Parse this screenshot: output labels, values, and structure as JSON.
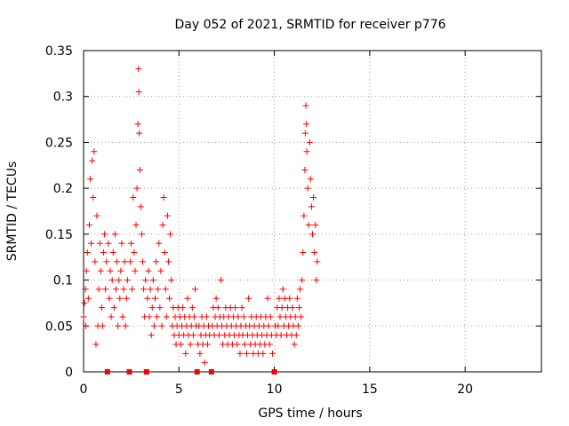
{
  "chart_data": {
    "type": "scatter",
    "title": "Day 052 of 2021, SRMTID for receiver p776",
    "xlabel": "GPS time / hours",
    "ylabel": "SRMTID / TECUs",
    "xlim": [
      0,
      24
    ],
    "ylim": [
      0,
      0.35
    ],
    "x_ticks": [
      0,
      5,
      10,
      15,
      20
    ],
    "x_tick_labels": [
      "0",
      "5",
      "10",
      "15",
      "20"
    ],
    "y_ticks": [
      0,
      0.05,
      0.1,
      0.15,
      0.2,
      0.25,
      0.3,
      0.35
    ],
    "y_tick_labels": [
      "0",
      "0.05",
      "0.1",
      "0.15",
      "0.2",
      "0.25",
      "0.3",
      "0.35"
    ],
    "grid": true,
    "marker": "+",
    "color": "#ff0000",
    "data_gaps_x": [
      1.25,
      2.4,
      3.3,
      5.95,
      6.7,
      10.0
    ],
    "series": [
      {
        "name": "SRMTID",
        "points": [
          [
            0.0,
            0.06
          ],
          [
            0.05,
            0.075
          ],
          [
            0.1,
            0.09
          ],
          [
            0.12,
            0.05
          ],
          [
            0.15,
            0.11
          ],
          [
            0.2,
            0.13
          ],
          [
            0.25,
            0.08
          ],
          [
            0.3,
            0.16
          ],
          [
            0.35,
            0.21
          ],
          [
            0.4,
            0.14
          ],
          [
            0.45,
            0.23
          ],
          [
            0.5,
            0.19
          ],
          [
            0.55,
            0.24
          ],
          [
            0.6,
            0.12
          ],
          [
            0.65,
            0.03
          ],
          [
            0.7,
            0.17
          ],
          [
            0.75,
            0.05
          ],
          [
            0.8,
            0.09
          ],
          [
            0.85,
            0.14
          ],
          [
            0.9,
            0.11
          ],
          [
            0.95,
            0.07
          ],
          [
            1.0,
            0.05
          ],
          [
            1.05,
            0.13
          ],
          [
            1.1,
            0.15
          ],
          [
            1.15,
            0.09
          ],
          [
            1.2,
            0.12
          ],
          [
            1.3,
            0.14
          ],
          [
            1.35,
            0.08
          ],
          [
            1.4,
            0.11
          ],
          [
            1.45,
            0.06
          ],
          [
            1.5,
            0.1
          ],
          [
            1.55,
            0.13
          ],
          [
            1.6,
            0.07
          ],
          [
            1.65,
            0.15
          ],
          [
            1.7,
            0.09
          ],
          [
            1.75,
            0.12
          ],
          [
            1.8,
            0.05
          ],
          [
            1.85,
            0.1
          ],
          [
            1.9,
            0.08
          ],
          [
            1.95,
            0.11
          ],
          [
            2.0,
            0.14
          ],
          [
            2.05,
            0.06
          ],
          [
            2.1,
            0.09
          ],
          [
            2.15,
            0.12
          ],
          [
            2.2,
            0.05
          ],
          [
            2.25,
            0.08
          ],
          [
            2.3,
            0.1
          ],
          [
            2.45,
            0.12
          ],
          [
            2.5,
            0.14
          ],
          [
            2.55,
            0.09
          ],
          [
            2.6,
            0.19
          ],
          [
            2.65,
            0.13
          ],
          [
            2.7,
            0.11
          ],
          [
            2.75,
            0.16
          ],
          [
            2.8,
            0.2
          ],
          [
            2.85,
            0.27
          ],
          [
            2.88,
            0.33
          ],
          [
            2.9,
            0.305
          ],
          [
            2.92,
            0.26
          ],
          [
            2.95,
            0.22
          ],
          [
            3.0,
            0.18
          ],
          [
            3.05,
            0.15
          ],
          [
            3.1,
            0.12
          ],
          [
            3.15,
            0.09
          ],
          [
            3.2,
            0.06
          ],
          [
            3.25,
            0.1
          ],
          [
            3.35,
            0.08
          ],
          [
            3.4,
            0.11
          ],
          [
            3.45,
            0.06
          ],
          [
            3.5,
            0.09
          ],
          [
            3.55,
            0.04
          ],
          [
            3.6,
            0.07
          ],
          [
            3.65,
            0.1
          ],
          [
            3.7,
            0.05
          ],
          [
            3.75,
            0.08
          ],
          [
            3.8,
            0.12
          ],
          [
            3.85,
            0.06
          ],
          [
            3.9,
            0.09
          ],
          [
            3.95,
            0.14
          ],
          [
            4.0,
            0.07
          ],
          [
            4.05,
            0.11
          ],
          [
            4.1,
            0.05
          ],
          [
            4.15,
            0.16
          ],
          [
            4.2,
            0.19
          ],
          [
            4.25,
            0.13
          ],
          [
            4.3,
            0.09
          ],
          [
            4.35,
            0.06
          ],
          [
            4.4,
            0.17
          ],
          [
            4.45,
            0.12
          ],
          [
            4.5,
            0.08
          ],
          [
            4.55,
            0.15
          ],
          [
            4.6,
            0.1
          ],
          [
            4.65,
            0.05
          ],
          [
            4.7,
            0.07
          ],
          [
            4.75,
            0.04
          ],
          [
            4.8,
            0.06
          ],
          [
            4.85,
            0.03
          ],
          [
            4.9,
            0.05
          ],
          [
            4.95,
            0.07
          ],
          [
            5.0,
            0.04
          ],
          [
            5.05,
            0.06
          ],
          [
            5.1,
            0.03
          ],
          [
            5.15,
            0.05
          ],
          [
            5.2,
            0.07
          ],
          [
            5.25,
            0.04
          ],
          [
            5.3,
            0.06
          ],
          [
            5.35,
            0.02
          ],
          [
            5.4,
            0.05
          ],
          [
            5.45,
            0.08
          ],
          [
            5.5,
            0.04
          ],
          [
            5.55,
            0.06
          ],
          [
            5.6,
            0.03
          ],
          [
            5.65,
            0.05
          ],
          [
            5.7,
            0.07
          ],
          [
            5.75,
            0.04
          ],
          [
            5.8,
            0.06
          ],
          [
            5.85,
            0.09
          ],
          [
            5.9,
            0.05
          ],
          [
            6.0,
            0.03
          ],
          [
            6.05,
            0.05
          ],
          [
            6.1,
            0.02
          ],
          [
            6.15,
            0.04
          ],
          [
            6.2,
            0.06
          ],
          [
            6.25,
            0.03
          ],
          [
            6.3,
            0.05
          ],
          [
            6.35,
            0.01
          ],
          [
            6.4,
            0.04
          ],
          [
            6.45,
            0.06
          ],
          [
            6.5,
            0.03
          ],
          [
            6.55,
            0.05
          ],
          [
            6.6,
            0.04
          ],
          [
            6.75,
            0.05
          ],
          [
            6.8,
            0.07
          ],
          [
            6.85,
            0.04
          ],
          [
            6.9,
            0.06
          ],
          [
            6.95,
            0.08
          ],
          [
            7.0,
            0.05
          ],
          [
            7.05,
            0.07
          ],
          [
            7.1,
            0.04
          ],
          [
            7.15,
            0.06
          ],
          [
            7.2,
            0.1
          ],
          [
            7.25,
            0.05
          ],
          [
            7.3,
            0.03
          ],
          [
            7.35,
            0.06
          ],
          [
            7.4,
            0.04
          ],
          [
            7.45,
            0.07
          ],
          [
            7.5,
            0.05
          ],
          [
            7.55,
            0.03
          ],
          [
            7.6,
            0.06
          ],
          [
            7.65,
            0.04
          ],
          [
            7.7,
            0.07
          ],
          [
            7.75,
            0.05
          ],
          [
            7.8,
            0.03
          ],
          [
            7.85,
            0.06
          ],
          [
            7.9,
            0.04
          ],
          [
            7.95,
            0.07
          ],
          [
            8.0,
            0.05
          ],
          [
            8.05,
            0.03
          ],
          [
            8.1,
            0.06
          ],
          [
            8.15,
            0.04
          ],
          [
            8.2,
            0.02
          ],
          [
            8.25,
            0.05
          ],
          [
            8.3,
            0.07
          ],
          [
            8.35,
            0.04
          ],
          [
            8.4,
            0.06
          ],
          [
            8.45,
            0.03
          ],
          [
            8.5,
            0.05
          ],
          [
            8.55,
            0.02
          ],
          [
            8.6,
            0.04
          ],
          [
            8.65,
            0.08
          ],
          [
            8.7,
            0.05
          ],
          [
            8.75,
            0.03
          ],
          [
            8.8,
            0.06
          ],
          [
            8.85,
            0.04
          ],
          [
            8.9,
            0.02
          ],
          [
            8.95,
            0.05
          ],
          [
            9.0,
            0.03
          ],
          [
            9.05,
            0.06
          ],
          [
            9.1,
            0.04
          ],
          [
            9.15,
            0.02
          ],
          [
            9.2,
            0.05
          ],
          [
            9.25,
            0.03
          ],
          [
            9.3,
            0.06
          ],
          [
            9.35,
            0.04
          ],
          [
            9.4,
            0.02
          ],
          [
            9.45,
            0.05
          ],
          [
            9.5,
            0.03
          ],
          [
            9.55,
            0.06
          ],
          [
            9.6,
            0.04
          ],
          [
            9.65,
            0.08
          ],
          [
            9.7,
            0.05
          ],
          [
            9.75,
            0.03
          ],
          [
            9.8,
            0.06
          ],
          [
            9.85,
            0.04
          ],
          [
            9.9,
            0.02
          ],
          [
            10.05,
            0.05
          ],
          [
            10.1,
            0.04
          ],
          [
            10.15,
            0.07
          ],
          [
            10.2,
            0.05
          ],
          [
            10.25,
            0.08
          ],
          [
            10.3,
            0.06
          ],
          [
            10.35,
            0.04
          ],
          [
            10.4,
            0.07
          ],
          [
            10.45,
            0.09
          ],
          [
            10.5,
            0.05
          ],
          [
            10.55,
            0.08
          ],
          [
            10.6,
            0.06
          ],
          [
            10.65,
            0.04
          ],
          [
            10.7,
            0.07
          ],
          [
            10.75,
            0.05
          ],
          [
            10.8,
            0.08
          ],
          [
            10.85,
            0.06
          ],
          [
            10.9,
            0.04
          ],
          [
            10.95,
            0.07
          ],
          [
            11.0,
            0.05
          ],
          [
            11.05,
            0.03
          ],
          [
            11.1,
            0.06
          ],
          [
            11.15,
            0.04
          ],
          [
            11.2,
            0.08
          ],
          [
            11.25,
            0.05
          ],
          [
            11.3,
            0.07
          ],
          [
            11.35,
            0.09
          ],
          [
            11.4,
            0.06
          ],
          [
            11.45,
            0.1
          ],
          [
            11.5,
            0.13
          ],
          [
            11.55,
            0.17
          ],
          [
            11.6,
            0.22
          ],
          [
            11.62,
            0.26
          ],
          [
            11.65,
            0.29
          ],
          [
            11.68,
            0.27
          ],
          [
            11.7,
            0.24
          ],
          [
            11.75,
            0.2
          ],
          [
            11.8,
            0.16
          ],
          [
            11.85,
            0.25
          ],
          [
            11.9,
            0.21
          ],
          [
            11.95,
            0.18
          ],
          [
            12.0,
            0.15
          ],
          [
            12.05,
            0.19
          ],
          [
            12.1,
            0.13
          ],
          [
            12.15,
            0.16
          ],
          [
            12.2,
            0.1
          ],
          [
            12.25,
            0.12
          ]
        ]
      }
    ]
  }
}
